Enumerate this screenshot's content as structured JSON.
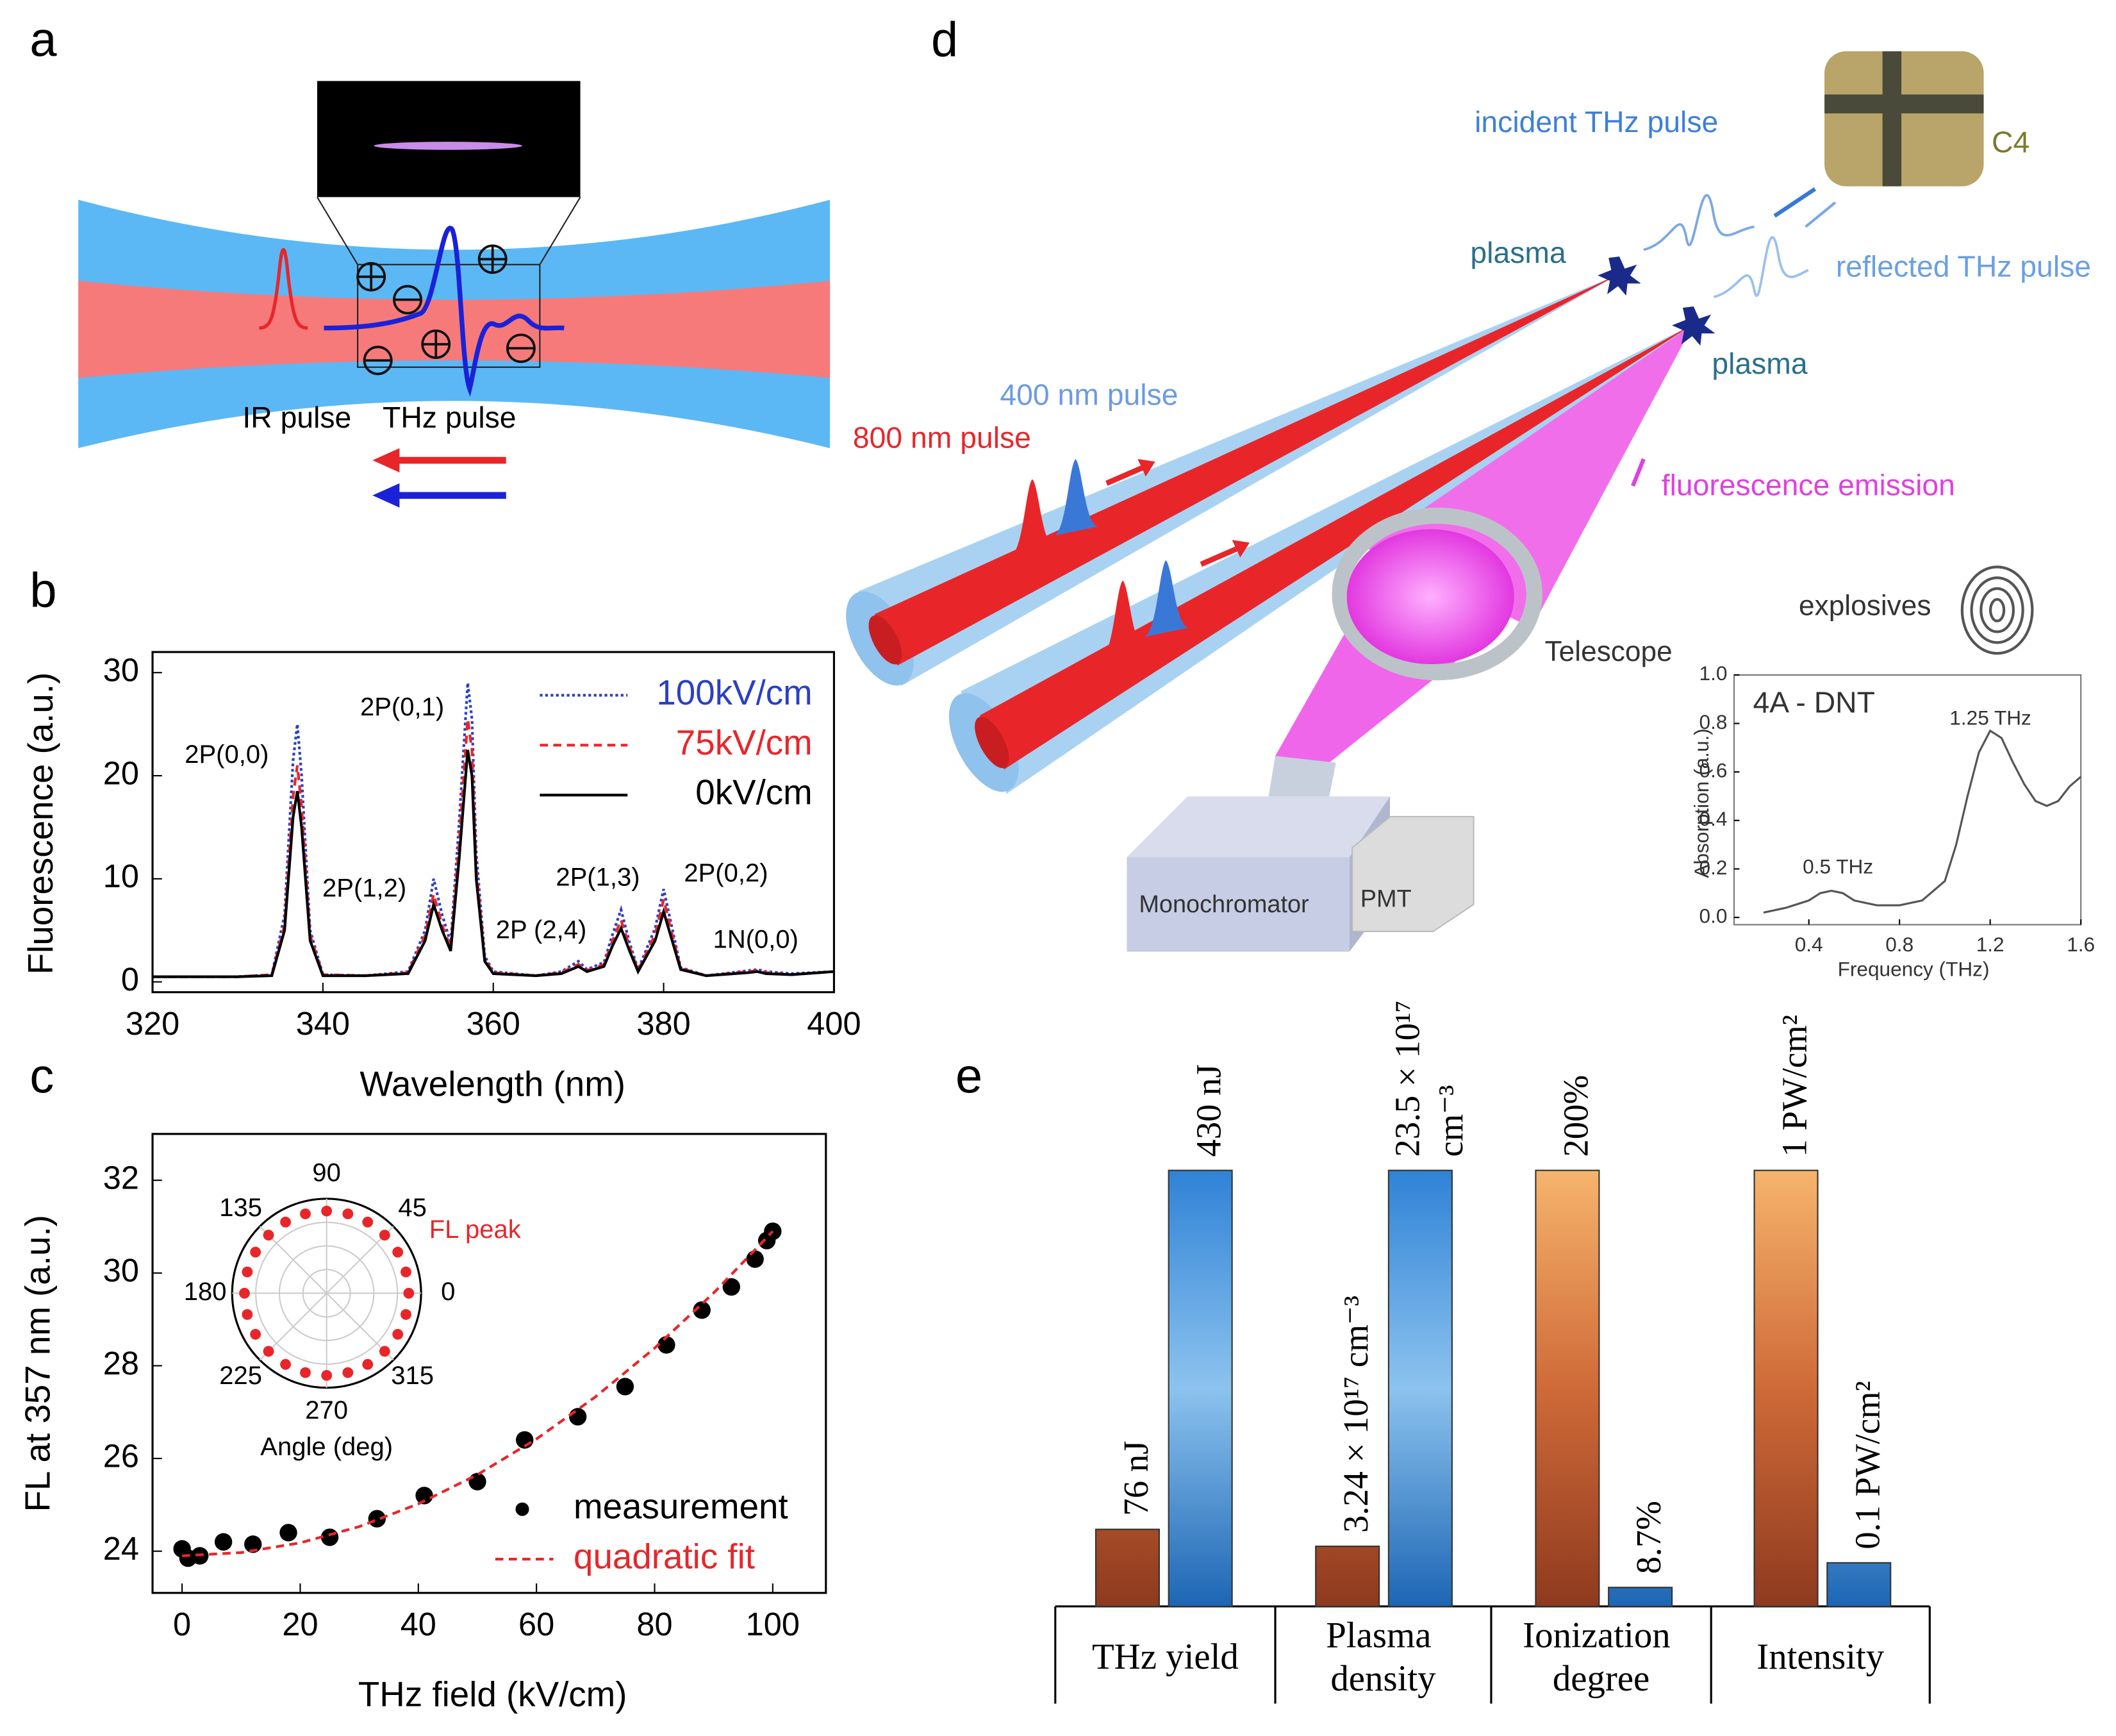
{
  "diagrams": {
    "a": {
      "panel": "a",
      "labels": [
        "IR pulse",
        "THz pulse"
      ]
    },
    "d": {
      "panel": "d",
      "labels": [
        "incident THz pulse",
        "reflected THz pulse",
        "C4",
        "plasma",
        "plasma",
        "400 nm pulse",
        "800 nm pulse",
        "fluorescence emission",
        "Telescope",
        "explosives",
        "Monochromator",
        "PMT"
      ]
    }
  },
  "chart_data": [
    {
      "type": "line",
      "panel": "b",
      "x_label": "Wavelength (nm)",
      "y_label": "Fluorescence (a.u.)",
      "x": [
        320,
        330,
        334,
        335.5,
        336.5,
        337,
        337.5,
        338.5,
        340,
        345,
        350,
        352,
        353,
        354,
        355,
        356,
        357,
        357.5,
        358,
        359,
        360,
        365,
        368,
        370,
        371,
        373,
        374,
        375,
        376,
        377,
        379,
        380,
        381,
        382,
        385,
        390,
        391,
        392,
        395,
        400
      ],
      "series": [
        {
          "name": "100kV/cm",
          "color": "#2b3fc4",
          "style": "dotted",
          "values": [
            0.5,
            0.5,
            0.7,
            6.5,
            21.5,
            25,
            20,
            5,
            0.7,
            0.6,
            1,
            5,
            10,
            6.5,
            3.8,
            15.5,
            29,
            25.5,
            12.5,
            2.5,
            1,
            0.6,
            1,
            2,
            1.2,
            1.9,
            4.6,
            7,
            3.8,
            1.2,
            5.2,
            9,
            5.2,
            1.4,
            0.6,
            1.1,
            1.2,
            1,
            0.8,
            1
          ]
        },
        {
          "name": "75kV/cm",
          "color": "#e8262a",
          "style": "dashed",
          "values": [
            0.5,
            0.5,
            0.7,
            5.5,
            18,
            21,
            17,
            4.5,
            0.7,
            0.6,
            0.9,
            4.5,
            8.5,
            5.5,
            3.3,
            13.5,
            25.5,
            22.5,
            11,
            2.2,
            0.9,
            0.6,
            0.9,
            1.7,
            1.1,
            1.7,
            4,
            6,
            3.4,
            1.1,
            4.6,
            8,
            4.6,
            1.3,
            0.6,
            1,
            1.1,
            0.9,
            0.7,
            1
          ]
        },
        {
          "name": "0kV/cm",
          "color": "#000000",
          "style": "solid",
          "values": [
            0.5,
            0.5,
            0.6,
            5,
            16,
            18.5,
            15,
            4,
            0.6,
            0.6,
            0.8,
            4,
            7.5,
            5,
            3,
            12,
            22.5,
            20,
            10,
            2,
            0.8,
            0.6,
            0.8,
            1.5,
            1,
            1.5,
            3.5,
            5.2,
            3,
            1,
            4,
            6.8,
            4,
            1.2,
            0.6,
            0.9,
            1,
            0.8,
            0.7,
            1
          ]
        }
      ],
      "xlim": [
        320,
        400
      ],
      "ylim": [
        -1,
        32
      ],
      "xticks": [
        320,
        340,
        360,
        380,
        400
      ],
      "yticks": [
        0,
        10,
        20,
        30
      ],
      "annotations": [
        "2P(0,0)",
        "2P(0,1)",
        "2P(1,2)",
        "2P (2,4)",
        "2P(1,3)",
        "2P(0,2)",
        "1N(0,0)"
      ]
    },
    {
      "type": "scatter",
      "panel": "c",
      "x_label": "THz field (kV/cm)",
      "y_label": "FL at 357 nm (a.u.)",
      "series": [
        {
          "name": "measurement",
          "color": "#000000",
          "style": "marker",
          "x": [
            0,
            1,
            3,
            7,
            12,
            18,
            25,
            33,
            41,
            50,
            58,
            67,
            75,
            82,
            88,
            93,
            97,
            99,
            100
          ],
          "values": [
            24.05,
            23.85,
            23.9,
            24.2,
            24.15,
            24.4,
            24.3,
            24.7,
            25.2,
            25.5,
            26.4,
            26.9,
            27.55,
            28.45,
            29.2,
            29.7,
            30.3,
            30.7,
            30.9
          ]
        },
        {
          "name": "quadratic fit",
          "color": "#e8262a",
          "style": "dashed",
          "x": [
            0,
            10,
            20,
            30,
            40,
            50,
            60,
            70,
            80,
            90,
            100
          ],
          "values": [
            23.9,
            23.97,
            24.18,
            24.53,
            25.02,
            25.65,
            26.42,
            27.33,
            28.38,
            29.57,
            30.9
          ]
        }
      ],
      "xlim": [
        -5,
        109
      ],
      "ylim": [
        23.1,
        33
      ],
      "xticks": [
        0,
        20,
        40,
        60,
        80,
        100
      ],
      "yticks": [
        24,
        26,
        28,
        30,
        32
      ]
    },
    {
      "type": "polar",
      "x_label": "Angle (deg)",
      "series_name": "FL peak",
      "color": "#e8262a",
      "theta": [
        0,
        15,
        30,
        45,
        60,
        75,
        90,
        105,
        120,
        135,
        150,
        165,
        180,
        195,
        210,
        225,
        240,
        255,
        270,
        285,
        300,
        315,
        330,
        345
      ],
      "r": [
        1,
        1,
        1,
        1,
        1,
        1,
        1,
        1,
        1,
        1,
        1,
        1,
        1,
        1,
        1,
        1,
        1,
        1,
        1,
        1,
        1,
        1,
        1,
        1
      ],
      "rlim": [
        0,
        1.15
      ],
      "thetaticks": [
        0,
        45,
        90,
        135,
        180,
        225,
        270,
        315
      ]
    },
    {
      "type": "line",
      "title": "4A - DNT",
      "x_label": "Frequency (THz)",
      "y_label": "Absorption (a.u.)",
      "x": [
        0.2,
        0.3,
        0.4,
        0.45,
        0.5,
        0.55,
        0.6,
        0.7,
        0.8,
        0.9,
        1.0,
        1.05,
        1.1,
        1.15,
        1.2,
        1.25,
        1.3,
        1.35,
        1.4,
        1.45,
        1.5,
        1.55,
        1.6
      ],
      "series": [
        {
          "color": "#555555",
          "style": "solid",
          "values": [
            0.02,
            0.04,
            0.07,
            0.1,
            0.11,
            0.1,
            0.07,
            0.05,
            0.05,
            0.07,
            0.15,
            0.3,
            0.5,
            0.68,
            0.77,
            0.74,
            0.64,
            0.55,
            0.48,
            0.46,
            0.48,
            0.54,
            0.58
          ]
        }
      ],
      "xlim": [
        0.07,
        1.6
      ],
      "ylim": [
        -0.03,
        1.0
      ],
      "xticks": [
        0.4,
        0.8,
        1.2,
        1.6
      ],
      "yticks": [
        {
          "value": 0,
          "label": "0.0"
        },
        0.2,
        0.4,
        0.6,
        0.8,
        {
          "value": 1,
          "label": "1.0"
        }
      ],
      "annotations": [
        "1.25 THz",
        "0.5 THz"
      ]
    },
    {
      "type": "bar",
      "panel": "e",
      "categories": [
        "THz yield",
        "Plasma density",
        "Ionization degree",
        "Intensity"
      ],
      "series": [
        {
          "color": "#a9472a",
          "values": [
            76,
            3.24e+17,
            200,
            1
          ],
          "value_labels": [
            "76 nJ",
            "3.24 × 10¹⁷ cm⁻³",
            "200%",
            "1 PW/cm²"
          ]
        },
        {
          "color": "#3f8fdc",
          "values": [
            430,
            2.35e+18,
            8.7,
            0.1
          ],
          "value_labels": [
            "430 nJ",
            "23.5 × 10¹⁷ cm⁻³",
            "8.7%",
            "0.1 PW/cm²"
          ]
        }
      ]
    }
  ]
}
